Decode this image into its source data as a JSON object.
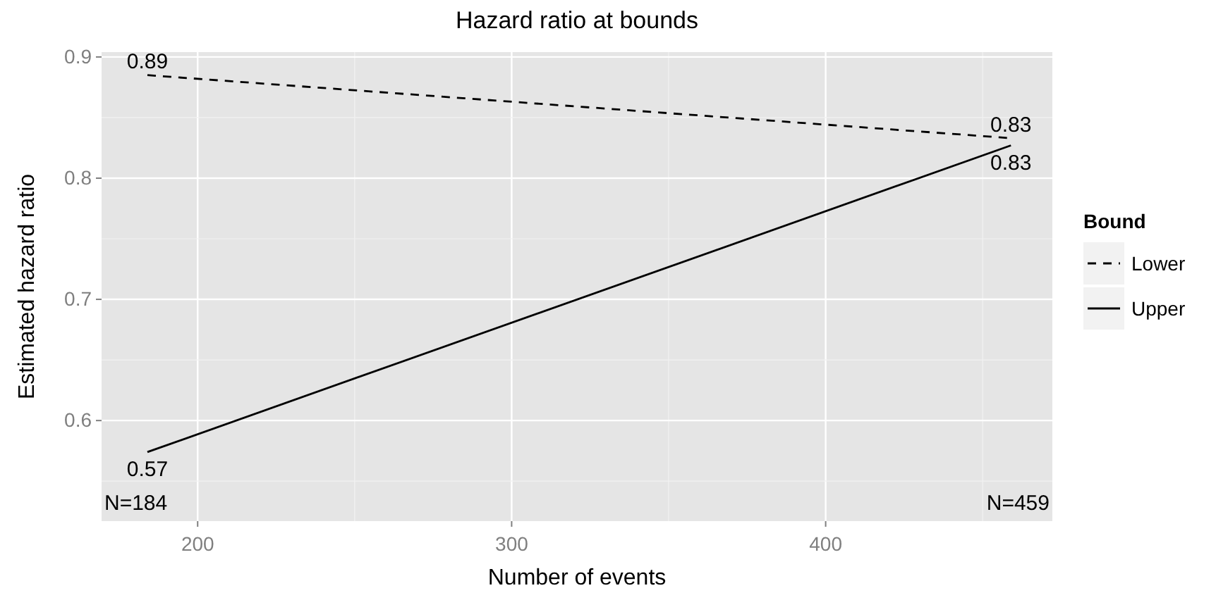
{
  "chart_data": {
    "type": "line",
    "title": "Hazard ratio at bounds",
    "xlabel": "Number of events",
    "ylabel": "Estimated hazard ratio",
    "legend_title": "Bound",
    "x": [
      184,
      459
    ],
    "series": [
      {
        "name": "Lower",
        "color": "#000000",
        "line_style": "dashed",
        "values": [
          0.885,
          0.833
        ],
        "value_labels": [
          "0.89",
          "0.83"
        ]
      },
      {
        "name": "Upper",
        "color": "#000000",
        "line_style": "solid",
        "values": [
          0.574,
          0.827
        ],
        "value_labels": [
          "0.57",
          "0.83"
        ]
      }
    ],
    "annotations": [
      "N=184",
      "N=459"
    ],
    "xlim": [
      169.4,
      472.2
    ],
    "ylim": [
      0.517,
      0.904
    ],
    "xticks": [
      200,
      300,
      400
    ],
    "yticks": [
      0.6,
      0.7,
      0.8,
      0.9
    ],
    "grid": true,
    "legend": "right",
    "marker": "none"
  }
}
